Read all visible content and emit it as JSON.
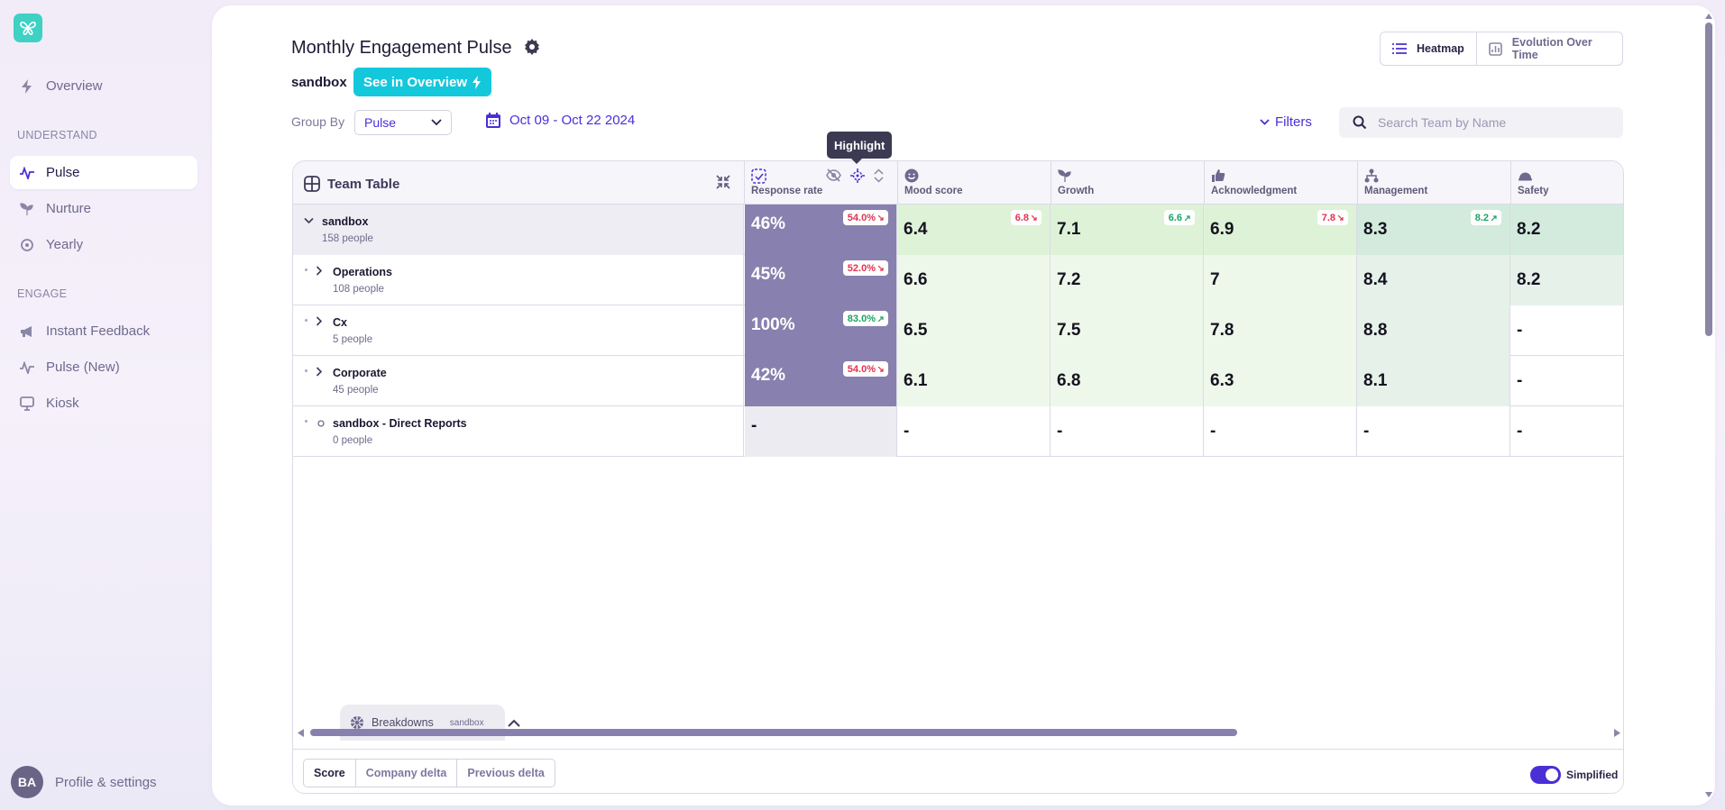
{
  "sidebar": {
    "logo_icon": "butterfly-logo-icon",
    "items_top": [
      {
        "label": "Overview",
        "icon": "bolt-icon"
      }
    ],
    "understand_label": "UNDERSTAND",
    "understand_items": [
      {
        "label": "Pulse",
        "icon": "pulse-icon",
        "active": true
      },
      {
        "label": "Nurture",
        "icon": "sprout-icon"
      },
      {
        "label": "Yearly",
        "icon": "cycle-icon"
      }
    ],
    "engage_label": "ENGAGE",
    "engage_items": [
      {
        "label": "Instant Feedback",
        "icon": "megaphone-icon"
      },
      {
        "label": "Pulse (New)",
        "icon": "pulse-icon"
      },
      {
        "label": "Kiosk",
        "icon": "kiosk-icon"
      }
    ],
    "profile": {
      "initials": "BA",
      "label": "Profile & settings"
    }
  },
  "header": {
    "title": "Monthly Engagement Pulse",
    "subtitle": "sandbox",
    "see_overview": "See in Overview",
    "views": [
      "Heatmap",
      "Evolution Over Time"
    ],
    "group_by_label": "Group By",
    "group_by_value": "Pulse",
    "date_range": "Oct 09 - Oct 22 2024",
    "filters": "Filters",
    "search_placeholder": "Search Team by Name"
  },
  "tooltip": "Highlight",
  "table": {
    "title": "Team Table",
    "columns": [
      "Response rate",
      "Mood score",
      "Growth",
      "Acknowledgment",
      "Management",
      "Safety"
    ],
    "rows": [
      {
        "name": "sandbox",
        "people": "158 people",
        "response": "46%",
        "response_delta": "54.0%",
        "response_dir": "down",
        "cells": [
          "6.4",
          "7.1",
          "6.9",
          "8.3",
          "8.2"
        ],
        "badges": [
          {
            "v": "6.8",
            "dir": "down"
          },
          {
            "v": "6.6",
            "dir": "up"
          },
          {
            "v": "7.8",
            "dir": "down"
          },
          {
            "v": "8.2",
            "dir": "up"
          },
          null
        ]
      },
      {
        "name": "Operations",
        "people": "108 people",
        "response": "45%",
        "response_delta": "52.0%",
        "response_dir": "down",
        "cells": [
          "6.6",
          "7.2",
          "7",
          "8.4",
          "8.2"
        ]
      },
      {
        "name": "Cx",
        "people": "5 people",
        "response": "100%",
        "response_delta": "83.0%",
        "response_dir": "up",
        "cells": [
          "6.5",
          "7.5",
          "7.8",
          "8.8",
          "-"
        ]
      },
      {
        "name": "Corporate",
        "people": "45 people",
        "response": "42%",
        "response_delta": "54.0%",
        "response_dir": "down",
        "cells": [
          "6.1",
          "6.8",
          "6.3",
          "8.1",
          "-"
        ]
      },
      {
        "name": "sandbox - Direct Reports",
        "people": "0 people",
        "response": "-",
        "response_delta": null,
        "response_dir": null,
        "cells": [
          "-",
          "-",
          "-",
          "-",
          "-"
        ]
      }
    ]
  },
  "breakdowns": {
    "label": "Breakdowns",
    "value": "sandbox"
  },
  "modes": [
    "Score",
    "Company delta",
    "Previous delta"
  ],
  "simplified_label": "Simplified",
  "colors": {
    "accent": "#4a2fd6",
    "cyan": "#14c8dc",
    "response_fill": "#8880ae",
    "light_green": "#eef8ea",
    "mid_green": "#def2d8",
    "teal_green": "#e6f1ea"
  }
}
